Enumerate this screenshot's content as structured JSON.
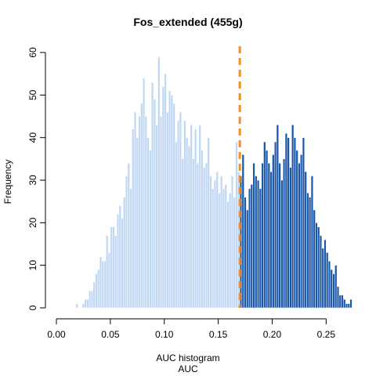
{
  "chart_data": {
    "type": "bar",
    "title": "Fos_extended (455g)",
    "xlabel_line1": "AUC histogram",
    "xlabel_line2": "AUC",
    "ylabel": "Frequency",
    "xlim": [
      0,
      0.265
    ],
    "ylim": [
      0,
      60
    ],
    "x_ticks": [
      "0.00",
      "0.05",
      "0.10",
      "0.15",
      "0.20",
      "0.25"
    ],
    "y_ticks": [
      "0",
      "10",
      "20",
      "30",
      "40",
      "50",
      "60"
    ],
    "threshold": 0.17,
    "bin_width": 0.002,
    "bin_start": 0.018,
    "counts": [
      1,
      0,
      0,
      1,
      2,
      2,
      4,
      4,
      6,
      8,
      9,
      12,
      11,
      11,
      17,
      13,
      19,
      19,
      17,
      22,
      24,
      21,
      26,
      31,
      34,
      28,
      42,
      46,
      40,
      45,
      48,
      54,
      45,
      40,
      37,
      53,
      49,
      43,
      59,
      45,
      52,
      55,
      46,
      51,
      50,
      48,
      39,
      44,
      46,
      35,
      44,
      40,
      38,
      43,
      35,
      42,
      34,
      43,
      37,
      33,
      34,
      40,
      31,
      28,
      30,
      32,
      27,
      31,
      28,
      29,
      25,
      27,
      31,
      26,
      39,
      32,
      31,
      36,
      26,
      23,
      28,
      29,
      34,
      31,
      30,
      28,
      34,
      39,
      37,
      34,
      32,
      36,
      39,
      43,
      34,
      30,
      35,
      41,
      40,
      33,
      43,
      40,
      37,
      34,
      36,
      40,
      32,
      27,
      26,
      31,
      23,
      20,
      19,
      17,
      14,
      16,
      13,
      11,
      9,
      8,
      10,
      5,
      3,
      3,
      2,
      1,
      1,
      2,
      0,
      0,
      0,
      0,
      0,
      0,
      0,
      0,
      0,
      0,
      0,
      0,
      0,
      0,
      1
    ],
    "colors": {
      "below": "#c0d8f4",
      "above": "#1c58a8",
      "threshold_line": "#ff8c1a",
      "axis": "#000000"
    }
  }
}
